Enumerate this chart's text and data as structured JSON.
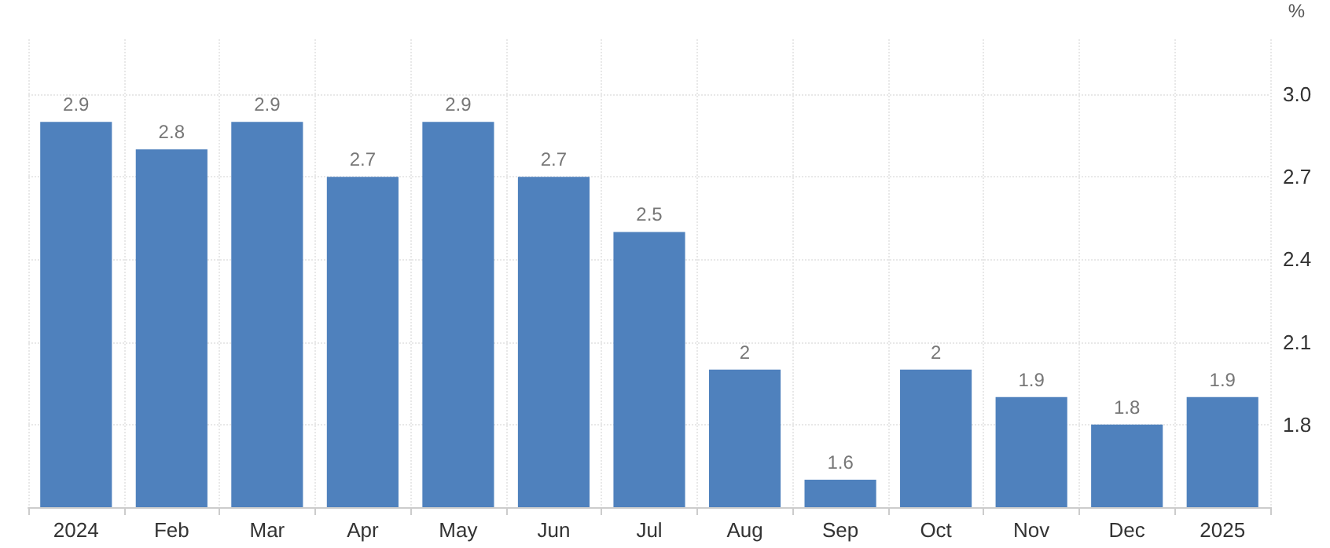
{
  "chart_data": {
    "type": "bar",
    "ylabel": "%",
    "categories": [
      "2024",
      "Feb",
      "Mar",
      "Apr",
      "May",
      "Jun",
      "Jul",
      "Aug",
      "Sep",
      "Oct",
      "Nov",
      "Dec",
      "2025"
    ],
    "values": [
      2.9,
      2.8,
      2.9,
      2.7,
      2.9,
      2.7,
      2.5,
      2,
      1.6,
      2,
      1.9,
      1.8,
      1.9
    ],
    "color": "#4f81bd",
    "ylim": [
      1.5,
      3.2
    ],
    "yticks": [
      1.8,
      2.1,
      2.4,
      2.7,
      {
        "value": 3,
        "label": "3.0"
      }
    ],
    "grid": true,
    "data_labels": true
  }
}
